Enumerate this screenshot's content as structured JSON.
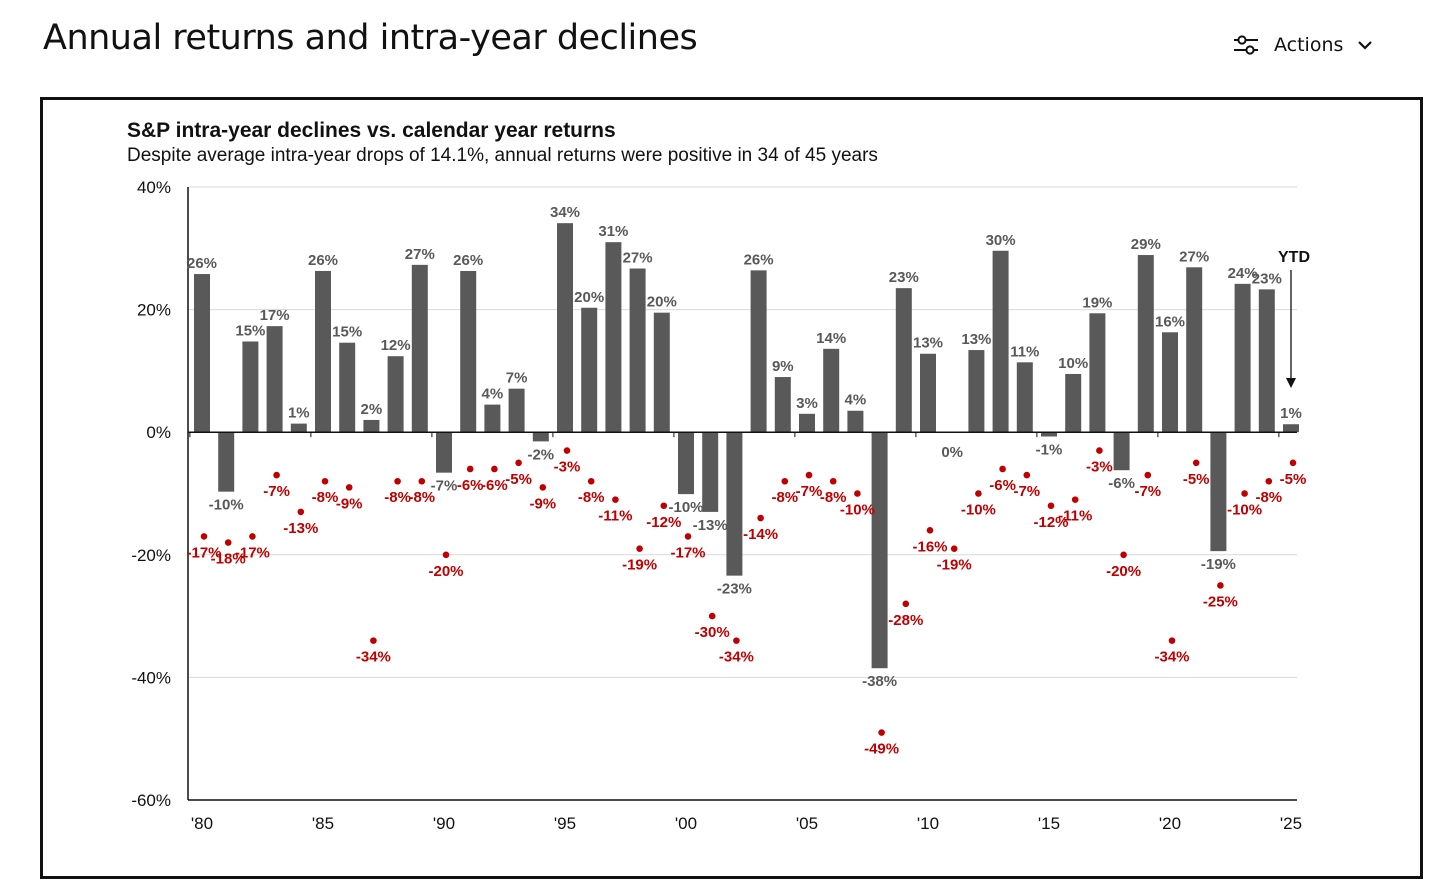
{
  "page": {
    "title": "Annual returns and intra-year declines",
    "actions_label": "Actions",
    "actions_icon": "sliders-icon",
    "actions_chevron": "chevron-down-icon"
  },
  "chart_data": {
    "type": "bar",
    "title": "S&P intra-year declines vs. calendar year returns",
    "subtitle": "Despite average intra-year drops of 14.1%, annual returns were positive in 34 of 45 years",
    "xlabel": "",
    "ylabel": "",
    "ylim": [
      -60,
      40
    ],
    "y_ticks": [
      "40%",
      "20%",
      "0%",
      "-20%",
      "-40%",
      "-60%"
    ],
    "y_tick_values": [
      40,
      20,
      0,
      -20,
      -40,
      -60
    ],
    "x_ticks": [
      "'80",
      "'85",
      "'90",
      "'95",
      "'00",
      "'05",
      "'10",
      "'15",
      "'20",
      "'25"
    ],
    "x_tick_years": [
      1980,
      1985,
      1990,
      1995,
      2000,
      2005,
      2010,
      2015,
      2020,
      2025
    ],
    "grid": true,
    "annotation": "YTD",
    "colors": {
      "bars": "#595959",
      "declines": "#c00000",
      "grid": "#d9d9d9"
    },
    "years": [
      1980,
      1981,
      1982,
      1983,
      1984,
      1985,
      1986,
      1987,
      1988,
      1989,
      1990,
      1991,
      1992,
      1993,
      1994,
      1995,
      1996,
      1997,
      1998,
      1999,
      2000,
      2001,
      2002,
      2003,
      2004,
      2005,
      2006,
      2007,
      2008,
      2009,
      2010,
      2011,
      2012,
      2013,
      2014,
      2015,
      2016,
      2017,
      2018,
      2019,
      2020,
      2021,
      2022,
      2023,
      2024,
      2025
    ],
    "series": [
      {
        "name": "",
        "kind": "bar",
        "values": [
          25.8,
          -9.7,
          14.8,
          17.3,
          1.4,
          26.3,
          14.6,
          2.0,
          12.4,
          27.3,
          -6.6,
          26.3,
          4.5,
          7.1,
          -1.5,
          34.1,
          20.3,
          31.0,
          26.7,
          19.5,
          -10.1,
          -13.0,
          -23.4,
          26.4,
          9.0,
          3.0,
          13.6,
          3.5,
          -38.5,
          23.5,
          12.8,
          0.0,
          13.4,
          29.6,
          11.4,
          -0.7,
          9.5,
          19.4,
          -6.2,
          28.9,
          16.3,
          26.9,
          -19.4,
          24.2,
          23.3,
          1.3
        ],
        "labels": [
          "26%",
          "-10%",
          "15%",
          "17%",
          "1%",
          "26%",
          "15%",
          "2%",
          "12%",
          "27%",
          "-7%",
          "26%",
          "4%",
          "7%",
          "-2%",
          "34%",
          "20%",
          "31%",
          "27%",
          "20%",
          "-10%",
          "-13%",
          "-23%",
          "26%",
          "9%",
          "3%",
          "14%",
          "4%",
          "-38%",
          "23%",
          "13%",
          "0%",
          "13%",
          "30%",
          "11%",
          "-1%",
          "10%",
          "19%",
          "-6%",
          "29%",
          "16%",
          "27%",
          "-19%",
          "24%",
          "23%",
          "1%"
        ]
      },
      {
        "name": "",
        "kind": "scatter",
        "values": [
          -17,
          -18,
          -17,
          -7,
          -13,
          -8,
          -9,
          -34,
          -8,
          -8,
          -20,
          -6,
          -6,
          -5,
          -9,
          -3,
          -8,
          -11,
          -19,
          -12,
          -17,
          -30,
          -34,
          -14,
          -8,
          -7,
          -8,
          -10,
          -49,
          -28,
          -16,
          -19,
          -10,
          -6,
          -7,
          -12,
          -11,
          -3,
          -20,
          -7,
          -34,
          -5,
          -25,
          -10,
          -8,
          -5
        ],
        "labels": [
          "-17%",
          "-18%",
          "-17%",
          "-7%",
          "-13%",
          "-8%",
          "-9%",
          "-34%",
          "-8%",
          "-8%",
          "-20%",
          "-6%",
          "-6%",
          "-5%",
          "-9%",
          "-3%",
          "-8%",
          "-11%",
          "-19%",
          "-12%",
          "-17%",
          "-30%",
          "-34%",
          "-14%",
          "-8%",
          "-7%",
          "-8%",
          "-10%",
          "-49%",
          "-28%",
          "-16%",
          "-19%",
          "-10%",
          "-6%",
          "-7%",
          "-12%",
          "-11%",
          "-3%",
          "-20%",
          "-7%",
          "-34%",
          "-5%",
          "-25%",
          "-10%",
          "-8%",
          "-5%"
        ]
      }
    ]
  }
}
